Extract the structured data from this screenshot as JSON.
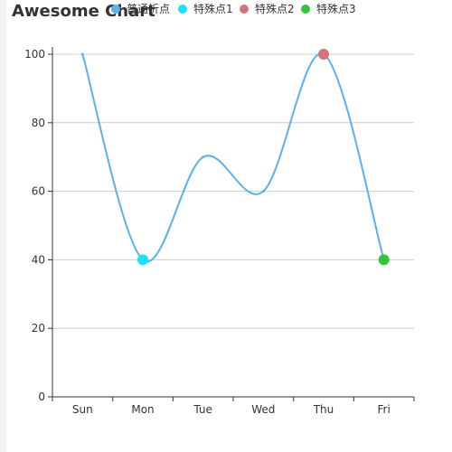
{
  "chart_data": {
    "type": "line",
    "title": "Awesome Chart",
    "categories": [
      "Sun",
      "Mon",
      "Tue",
      "Wed",
      "Thu",
      "Fri"
    ],
    "series": [
      {
        "name": "普通折点",
        "values": [
          100,
          40,
          70,
          60,
          100,
          40
        ],
        "color": "#5ab1ef"
      }
    ],
    "special_points": [
      {
        "name": "特殊点1",
        "category": "Mon",
        "value": 40,
        "color": "#1edfff"
      },
      {
        "name": "特殊点2",
        "category": "Thu",
        "value": 100,
        "color": "#d4737b"
      },
      {
        "name": "特殊点3",
        "category": "Fri",
        "value": 40,
        "color": "#33c43a"
      }
    ],
    "yticks": [
      0,
      20,
      40,
      60,
      80,
      100
    ],
    "ylim": [
      0,
      100
    ],
    "grid": true,
    "legend_position": "top",
    "smooth": true
  }
}
